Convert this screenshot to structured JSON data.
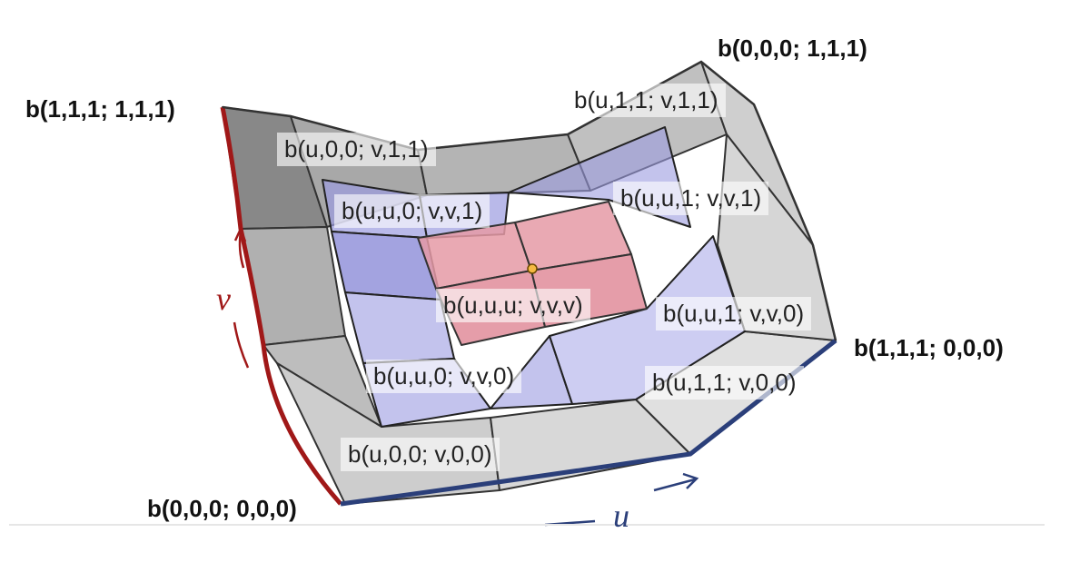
{
  "corners": {
    "top_left": "b(1,1,1; 1,1,1)",
    "top_right": "b(0,0,0; 1,1,1)",
    "bottom_right": "b(1,1,1; 0,0,0)",
    "bottom_left": "b(0,0,0; 0,0,0)"
  },
  "blossom_labels": {
    "u11_v11": "b(u,1,1; v,1,1)",
    "u00_v11": "b(u,0,0; v,1,1)",
    "uu0_vv1": "b(u,u,0; v,v,1)",
    "uu1_vv1": "b(u,u,1; v,v,1)",
    "uuu_vvv": "b(u,u,u; v,v,v)",
    "uu1_vv0": "b(u,u,1; v,v,0)",
    "uu0_vv0": "b(u,u,0; v,v,0)",
    "u11_v00": "b(u,1,1; v,0,0)",
    "u00_v00": "b(u,0,0; v,0,0)"
  },
  "axes": {
    "u_label": "u",
    "v_label": "v"
  },
  "colors": {
    "grid_face": "#c8c8c8",
    "grid_face_dark": "#8a8a8a",
    "blue_layer": "#9b9be0",
    "red_layer": "#e59aa6",
    "u_axis": "#2b3f7a",
    "v_axis": "#a01818",
    "point": "#f5b942"
  }
}
